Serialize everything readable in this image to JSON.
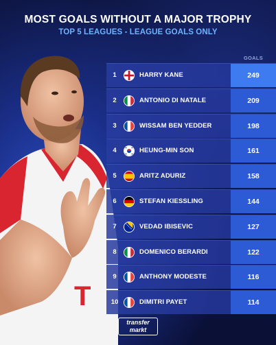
{
  "header": {
    "title": "MOST GOALS WITHOUT A MAJOR TROPHY",
    "subtitle": "TOP 5 LEAGUES - LEAGUE GOALS ONLY",
    "column_label": "GOALS"
  },
  "rows": [
    {
      "rank": "1",
      "name": "HARRY KANE",
      "goals": "249",
      "flag": "england-flag-icon"
    },
    {
      "rank": "2",
      "name": "ANTONIO DI NATALE",
      "goals": "209",
      "flag": "italy-flag-icon"
    },
    {
      "rank": "3",
      "name": "WISSAM BEN YEDDER",
      "goals": "198",
      "flag": "france-flag-icon"
    },
    {
      "rank": "4",
      "name": "HEUNG-MIN SON",
      "goals": "161",
      "flag": "south-korea-flag-icon"
    },
    {
      "rank": "5",
      "name": "ARITZ ADURIZ",
      "goals": "158",
      "flag": "spain-flag-icon"
    },
    {
      "rank": "6",
      "name": "STEFAN KIESSLING",
      "goals": "144",
      "flag": "germany-flag-icon"
    },
    {
      "rank": "7",
      "name": "VEDAD IBISEVIC",
      "goals": "127",
      "flag": "bosnia-flag-icon"
    },
    {
      "rank": "8",
      "name": "DOMENICO BERARDI",
      "goals": "122",
      "flag": "italy-flag-icon"
    },
    {
      "rank": "9",
      "name": "ANTHONY MODESTE",
      "goals": "116",
      "flag": "france-flag-icon"
    },
    {
      "rank": "10",
      "name": "DIMITRI PAYET",
      "goals": "114",
      "flag": "france-flag-icon"
    }
  ],
  "logo": {
    "line1": "transfer",
    "line2": "markt"
  },
  "colors": {
    "accent": "#3f7bf0",
    "subtitle": "#6fb2ff",
    "row": "#22349a"
  }
}
